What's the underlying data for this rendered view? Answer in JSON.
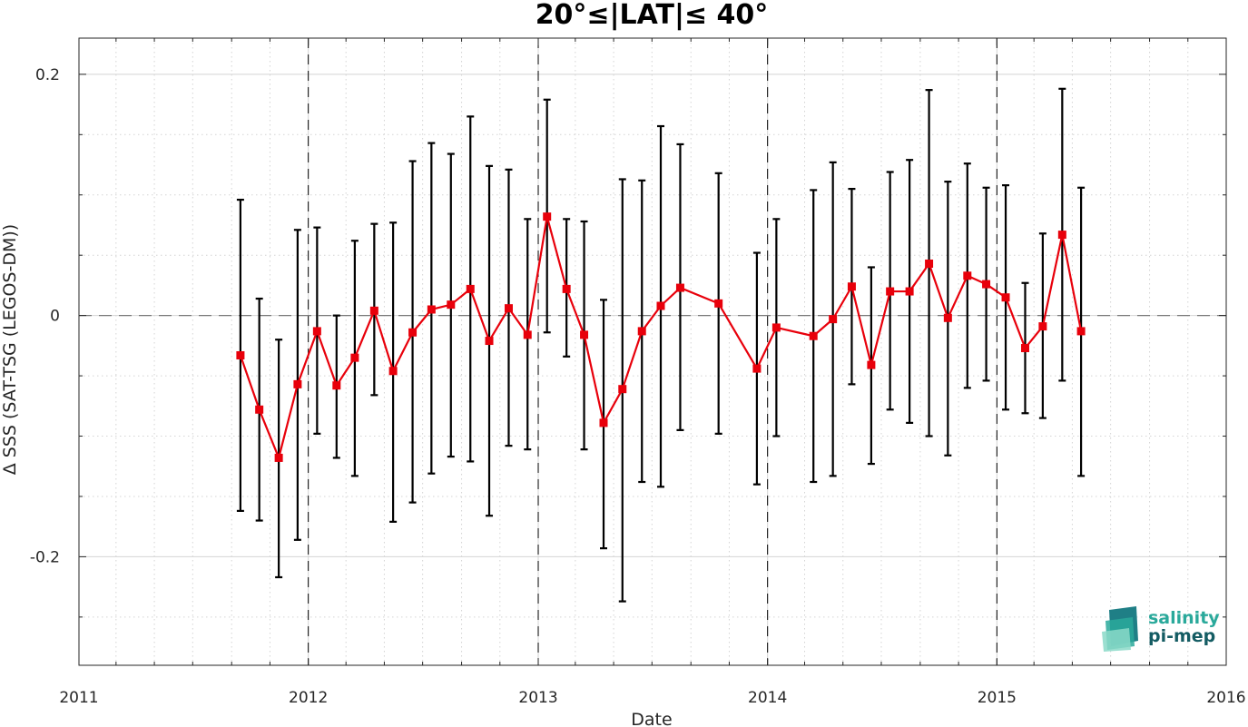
{
  "chart_data": {
    "type": "line",
    "title": "20°≤|LAT|≤ 40°",
    "xlabel": "Date",
    "ylabel": "Δ SSS (SAT-TSG (LEGOS-DM))",
    "xlim": [
      "2011-01-01",
      "2016-01-01"
    ],
    "ylim": [
      -0.29,
      0.23
    ],
    "x_ticks": [
      "2011",
      "2012",
      "2013",
      "2014",
      "2015",
      "2016"
    ],
    "y_ticks": [
      0.2,
      0,
      -0.2
    ],
    "y_tick_labels": [
      "0.2",
      "0",
      "-0.2"
    ],
    "grid": true,
    "zero_line": 0,
    "year_boundaries": [
      "2012-01-01",
      "2013-01-01",
      "2014-01-01",
      "2015-01-01"
    ],
    "series": [
      {
        "color": "#e8000b",
        "marker": "square",
        "error_bar_color": "#000000",
        "points": [
          {
            "x": "2011-09-15",
            "y": -0.033,
            "low": -0.162,
            "high": 0.096
          },
          {
            "x": "2011-10-15",
            "y": -0.078,
            "low": -0.17,
            "high": 0.014
          },
          {
            "x": "2011-11-15",
            "y": -0.118,
            "low": -0.217,
            "high": -0.02
          },
          {
            "x": "2011-12-15",
            "y": -0.057,
            "low": -0.186,
            "high": 0.071
          },
          {
            "x": "2012-01-15",
            "y": -0.013,
            "low": -0.098,
            "high": 0.073
          },
          {
            "x": "2012-02-15",
            "y": -0.058,
            "low": -0.118,
            "high": 0.0
          },
          {
            "x": "2012-03-15",
            "y": -0.035,
            "low": -0.133,
            "high": 0.062
          },
          {
            "x": "2012-04-15",
            "y": 0.004,
            "low": -0.066,
            "high": 0.076
          },
          {
            "x": "2012-05-15",
            "y": -0.046,
            "low": -0.171,
            "high": 0.077
          },
          {
            "x": "2012-06-15",
            "y": -0.014,
            "low": -0.155,
            "high": 0.128
          },
          {
            "x": "2012-07-15",
            "y": 0.005,
            "low": -0.131,
            "high": 0.143
          },
          {
            "x": "2012-08-15",
            "y": 0.009,
            "low": -0.117,
            "high": 0.134
          },
          {
            "x": "2012-09-15",
            "y": 0.022,
            "low": -0.121,
            "high": 0.165
          },
          {
            "x": "2012-10-15",
            "y": -0.021,
            "low": -0.166,
            "high": 0.124
          },
          {
            "x": "2012-11-15",
            "y": 0.006,
            "low": -0.108,
            "high": 0.121
          },
          {
            "x": "2012-12-15",
            "y": -0.016,
            "low": -0.111,
            "high": 0.08
          },
          {
            "x": "2013-01-15",
            "y": 0.082,
            "low": -0.014,
            "high": 0.179
          },
          {
            "x": "2013-02-15",
            "y": 0.022,
            "low": -0.034,
            "high": 0.08
          },
          {
            "x": "2013-03-15",
            "y": -0.016,
            "low": -0.111,
            "high": 0.078
          },
          {
            "x": "2013-04-15",
            "y": -0.089,
            "low": -0.193,
            "high": 0.013
          },
          {
            "x": "2013-05-15",
            "y": -0.061,
            "low": -0.237,
            "high": 0.113
          },
          {
            "x": "2013-06-15",
            "y": -0.013,
            "low": -0.138,
            "high": 0.112
          },
          {
            "x": "2013-07-15",
            "y": 0.008,
            "low": -0.142,
            "high": 0.157
          },
          {
            "x": "2013-08-15",
            "y": 0.023,
            "low": -0.095,
            "high": 0.142
          },
          {
            "x": "2013-10-15",
            "y": 0.01,
            "low": -0.098,
            "high": 0.118
          },
          {
            "x": "2013-12-15",
            "y": -0.044,
            "low": -0.14,
            "high": 0.052
          },
          {
            "x": "2014-01-15",
            "y": -0.01,
            "low": -0.1,
            "high": 0.08
          },
          {
            "x": "2014-03-15",
            "y": -0.017,
            "low": -0.138,
            "high": 0.104
          },
          {
            "x": "2014-04-15",
            "y": -0.003,
            "low": -0.133,
            "high": 0.127
          },
          {
            "x": "2014-05-15",
            "y": 0.024,
            "low": -0.057,
            "high": 0.105
          },
          {
            "x": "2014-06-15",
            "y": -0.041,
            "low": -0.123,
            "high": 0.04
          },
          {
            "x": "2014-07-15",
            "y": 0.02,
            "low": -0.078,
            "high": 0.119
          },
          {
            "x": "2014-08-15",
            "y": 0.02,
            "low": -0.089,
            "high": 0.129
          },
          {
            "x": "2014-09-15",
            "y": 0.043,
            "low": -0.1,
            "high": 0.187
          },
          {
            "x": "2014-10-15",
            "y": -0.002,
            "low": -0.116,
            "high": 0.111
          },
          {
            "x": "2014-11-15",
            "y": 0.033,
            "low": -0.06,
            "high": 0.126
          },
          {
            "x": "2014-12-15",
            "y": 0.026,
            "low": -0.054,
            "high": 0.106
          },
          {
            "x": "2015-01-15",
            "y": 0.015,
            "low": -0.078,
            "high": 0.108
          },
          {
            "x": "2015-02-15",
            "y": -0.027,
            "low": -0.081,
            "high": 0.027
          },
          {
            "x": "2015-03-15",
            "y": -0.009,
            "low": -0.085,
            "high": 0.068
          },
          {
            "x": "2015-04-15",
            "y": 0.067,
            "low": -0.054,
            "high": 0.188
          },
          {
            "x": "2015-05-15",
            "y": -0.013,
            "low": -0.133,
            "high": 0.106
          }
        ]
      }
    ]
  },
  "logo": {
    "line1": "salinity",
    "line2": "pi-mep",
    "color1": "#2aa99b",
    "color2": "#145c63"
  }
}
